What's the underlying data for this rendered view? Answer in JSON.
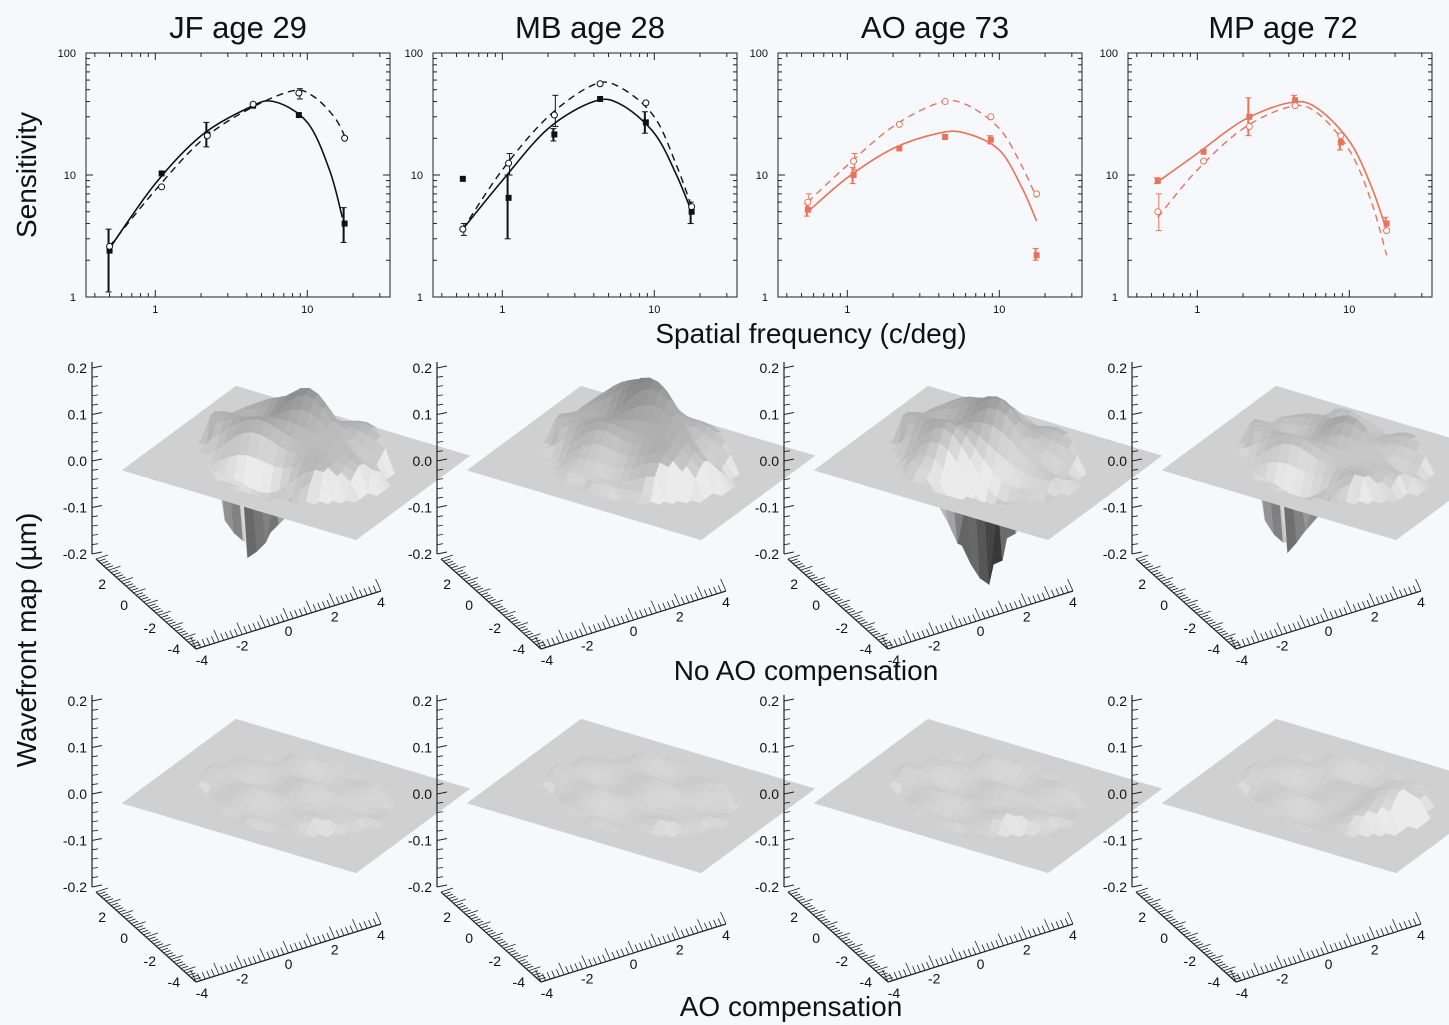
{
  "figure": {
    "sensitivity_label": "Sensitivity",
    "spatial_freq_label": "Spatial frequency (c/deg)",
    "wavefront_label": "Wavefront map (µm)",
    "row2_label": "No AO compensation",
    "row3_label": "AO compensation"
  },
  "colors": {
    "young": "#111111",
    "old": "#e8735a",
    "background": "#f7f8fc"
  },
  "chart_data": [
    {
      "type": "line",
      "title": "JF age 29",
      "color": "#111111",
      "xscale": "log",
      "yscale": "log",
      "xlim": [
        0.35,
        35
      ],
      "ylim": [
        1,
        100
      ],
      "ytick_labels": [
        "1",
        "10",
        "100"
      ],
      "xtick_labels": [
        "1",
        "10"
      ],
      "series": [
        {
          "style": "solid",
          "marker": "filled-square",
          "x": [
            0.5,
            1.1,
            2.2,
            4.4,
            8.8,
            17.6
          ],
          "y": [
            2.4,
            10.3,
            21.5,
            37,
            31,
            4
          ],
          "err": [
            [
              1.1,
              3.6
            ],
            null,
            [
              17,
              27
            ],
            null,
            null,
            [
              2.8,
              5.4
            ]
          ],
          "curve": [
            [
              0.5,
              2.5
            ],
            [
              1,
              8.5
            ],
            [
              2,
              21
            ],
            [
              4,
              35
            ],
            [
              6,
              40
            ],
            [
              10,
              27
            ],
            [
              14,
              11
            ],
            [
              17,
              4.5
            ]
          ]
        },
        {
          "style": "dashed",
          "marker": "open-circle",
          "x": [
            0.5,
            1.1,
            2.2,
            4.4,
            8.8,
            17.6
          ],
          "y": [
            2.6,
            8,
            21,
            38,
            47,
            20
          ],
          "err": [
            null,
            null,
            null,
            null,
            [
              42,
              51
            ],
            null
          ],
          "curve": [
            [
              0.5,
              2.6
            ],
            [
              1,
              7.5
            ],
            [
              2,
              19
            ],
            [
              4,
              34
            ],
            [
              8,
              49
            ],
            [
              11,
              44
            ],
            [
              15,
              30
            ],
            [
              17.6,
              21
            ]
          ]
        }
      ]
    },
    {
      "type": "line",
      "title": "MB age 28",
      "color": "#111111",
      "xscale": "log",
      "yscale": "log",
      "xlim": [
        0.35,
        35
      ],
      "ylim": [
        1,
        100
      ],
      "ytick_labels": [
        "1",
        "10",
        "100"
      ],
      "xtick_labels": [
        "1",
        "10"
      ],
      "series": [
        {
          "style": "solid",
          "marker": "filled-square",
          "x": [
            0.55,
            1.1,
            2.2,
            4.4,
            8.8,
            17.6
          ],
          "y": [
            9.3,
            6.5,
            21.5,
            42,
            27,
            5
          ],
          "err": [
            null,
            [
              3,
              10
            ],
            [
              19,
              24
            ],
            null,
            [
              22,
              33
            ],
            [
              4,
              6
            ]
          ],
          "curve": [
            [
              0.55,
              3.6
            ],
            [
              1,
              9
            ],
            [
              2,
              24
            ],
            [
              4,
              40
            ],
            [
              6,
              38
            ],
            [
              10,
              22
            ],
            [
              14,
              10
            ],
            [
              17.6,
              5
            ]
          ]
        },
        {
          "style": "dashed",
          "marker": "open-circle",
          "x": [
            0.55,
            1.1,
            2.2,
            4.4,
            8.8,
            17.6
          ],
          "y": [
            3.6,
            12.5,
            31,
            56,
            39,
            5.5
          ],
          "err": [
            [
              3.2,
              4
            ],
            [
              10,
              15
            ],
            [
              25,
              45
            ],
            null,
            null,
            null
          ],
          "curve": [
            [
              0.55,
              3.6
            ],
            [
              1,
              11
            ],
            [
              2,
              30
            ],
            [
              4,
              55
            ],
            [
              6,
              52
            ],
            [
              10,
              30
            ],
            [
              14,
              12
            ],
            [
              17.6,
              5.5
            ]
          ]
        }
      ]
    },
    {
      "type": "line",
      "title": "AO age 73",
      "color": "#e8735a",
      "xscale": "log",
      "yscale": "log",
      "xlim": [
        0.35,
        35
      ],
      "ylim": [
        1,
        100
      ],
      "ytick_labels": [
        "1",
        "10",
        "100"
      ],
      "xtick_labels": [
        "1",
        "10"
      ],
      "series": [
        {
          "style": "solid",
          "marker": "filled-square",
          "x": [
            0.55,
            1.1,
            2.2,
            4.4,
            8.8,
            17.6
          ],
          "y": [
            5.2,
            10,
            16.5,
            20.5,
            19.5,
            2.2
          ],
          "err": [
            [
              4.6,
              5.8
            ],
            [
              8.5,
              11.5
            ],
            null,
            null,
            [
              18,
              21
            ],
            [
              2,
              2.5
            ]
          ],
          "curve": [
            [
              0.55,
              5
            ],
            [
              1,
              9.5
            ],
            [
              2,
              16.5
            ],
            [
              4,
              22
            ],
            [
              6,
              22
            ],
            [
              10,
              16
            ],
            [
              14,
              8
            ],
            [
              17.6,
              4.2
            ]
          ]
        },
        {
          "style": "dashed",
          "marker": "open-circle",
          "x": [
            0.55,
            1.1,
            2.2,
            4.4,
            8.8,
            17.6
          ],
          "y": [
            6,
            13,
            26,
            40,
            30,
            7
          ],
          "err": [
            [
              5,
              7
            ],
            [
              11,
              15
            ],
            null,
            null,
            null,
            null
          ],
          "curve": [
            [
              0.55,
              6
            ],
            [
              1,
              12
            ],
            [
              2,
              25
            ],
            [
              4,
              39
            ],
            [
              6,
              38
            ],
            [
              10,
              24
            ],
            [
              14,
              12
            ],
            [
              17.6,
              6.5
            ]
          ]
        }
      ]
    },
    {
      "type": "line",
      "title": "MP age 72",
      "color": "#e8735a",
      "xscale": "log",
      "yscale": "log",
      "xlim": [
        0.35,
        35
      ],
      "ylim": [
        1,
        100
      ],
      "ytick_labels": [
        "1",
        "10",
        "100"
      ],
      "xtick_labels": [
        "1",
        "10"
      ],
      "series": [
        {
          "style": "solid",
          "marker": "filled-square",
          "x": [
            0.55,
            1.1,
            2.2,
            4.4,
            8.8,
            17.6
          ],
          "y": [
            9,
            15.5,
            30,
            41,
            18.5,
            4
          ],
          "err": [
            [
              8.5,
              9.5
            ],
            null,
            [
              21,
              43
            ],
            [
              37,
              45
            ],
            [
              16,
              21
            ],
            [
              3.5,
              4.5
            ]
          ],
          "curve": [
            [
              0.55,
              8.8
            ],
            [
              1,
              15
            ],
            [
              2,
              28
            ],
            [
              4,
              39
            ],
            [
              6,
              36
            ],
            [
              10,
              19
            ],
            [
              14,
              8
            ],
            [
              17.6,
              3.5
            ]
          ]
        },
        {
          "style": "dashed",
          "marker": "open-circle",
          "x": [
            0.55,
            1.1,
            2.2,
            4.4,
            8.8,
            17.6
          ],
          "y": [
            5,
            13,
            25,
            37,
            21,
            3.5
          ],
          "err": [
            [
              3.5,
              7
            ],
            null,
            null,
            null,
            null,
            null
          ],
          "curve": [
            [
              0.55,
              4.5
            ],
            [
              1,
              11
            ],
            [
              2,
              24
            ],
            [
              4,
              36
            ],
            [
              6,
              33
            ],
            [
              10,
              16
            ],
            [
              14,
              6
            ],
            [
              17.6,
              2.2
            ]
          ]
        }
      ]
    }
  ],
  "wavefront": {
    "z_ticks": [
      "0.2",
      "0.1",
      "0.0",
      "-0.1",
      "-0.2"
    ],
    "y_ticks": [
      "2",
      "0",
      "-2",
      "-4"
    ],
    "x_ticks": [
      "-4",
      "-2",
      "0",
      "2",
      "4"
    ],
    "no_ao_peaks": [
      [
        [
          0,
          0,
          0.13,
          1.7
        ],
        [
          -0.5,
          -3.2,
          -0.2,
          1.1
        ]
      ],
      [
        [
          -0.4,
          0.7,
          0.14,
          1.4
        ],
        [
          1.4,
          -0.7,
          0.07,
          1.0
        ]
      ],
      [
        [
          -0.3,
          0.3,
          0.11,
          1.6
        ],
        [
          1.2,
          -2.6,
          -0.19,
          1.0
        ]
      ],
      [
        [
          0,
          0,
          0.07,
          1.7
        ],
        [
          -0.6,
          -3.0,
          -0.17,
          0.9
        ]
      ]
    ],
    "ao_peaks": [
      [
        [
          0.3,
          -0.9,
          0.02,
          1.3
        ]
      ],
      [
        [
          0.2,
          0.3,
          0.015,
          1.6
        ]
      ],
      [
        [
          1.3,
          -1.4,
          0.02,
          1.0
        ]
      ],
      [
        [
          2.2,
          -0.4,
          0.065,
          0.9
        ]
      ]
    ]
  }
}
